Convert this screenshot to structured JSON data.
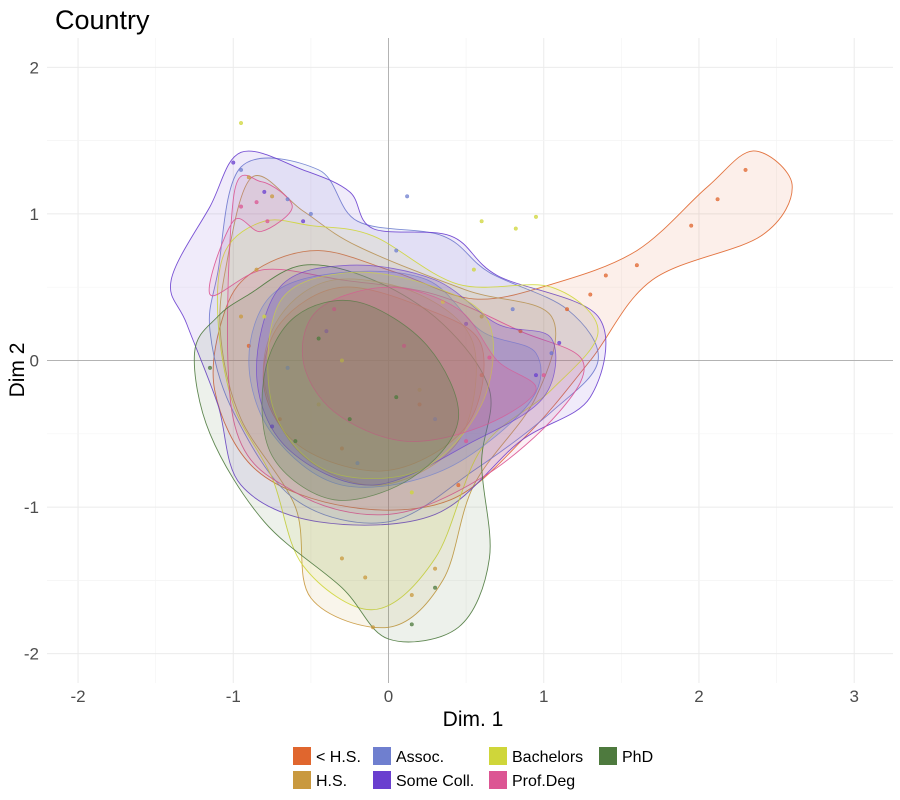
{
  "chart_data": {
    "type": "scatter",
    "title": "Country",
    "xlabel": "Dim. 1",
    "ylabel": "Dim 2",
    "xlim": [
      -2.2,
      3.25
    ],
    "ylim": [
      -2.2,
      2.2
    ],
    "x_ticks": [
      -2,
      -1,
      0,
      1,
      2,
      3
    ],
    "y_ticks": [
      -2,
      -1,
      0,
      1,
      2
    ],
    "grid": true,
    "legend_position": "bottom",
    "overlay": "2D density contours (two levels) per group, with jittered points",
    "series": [
      {
        "name": "< H.S.",
        "color": "#E0662E",
        "points": [
          [
            2.3,
            1.3
          ],
          [
            2.12,
            1.1
          ],
          [
            1.95,
            0.92
          ],
          [
            1.6,
            0.65
          ],
          [
            1.4,
            0.58
          ],
          [
            1.3,
            0.45
          ],
          [
            1.15,
            0.35
          ],
          [
            0.85,
            0.2
          ],
          [
            0.6,
            -0.1
          ],
          [
            0.2,
            -0.3
          ],
          [
            -0.3,
            -0.6
          ],
          [
            -0.9,
            0.1
          ],
          [
            -0.7,
            -0.4
          ],
          [
            0.45,
            -0.85
          ]
        ],
        "outer": [
          [
            -1.05,
            0.35
          ],
          [
            -0.85,
            0.62
          ],
          [
            -0.45,
            0.75
          ],
          [
            0.05,
            0.6
          ],
          [
            0.55,
            0.42
          ],
          [
            1.05,
            0.52
          ],
          [
            1.6,
            0.75
          ],
          [
            2.05,
            1.18
          ],
          [
            2.35,
            1.43
          ],
          [
            2.6,
            1.2
          ],
          [
            2.4,
            0.85
          ],
          [
            1.7,
            0.55
          ],
          [
            1.3,
            0.0
          ],
          [
            0.9,
            -0.5
          ],
          [
            0.4,
            -0.95
          ],
          [
            -0.25,
            -1.0
          ],
          [
            -0.85,
            -0.75
          ],
          [
            -1.12,
            -0.2
          ]
        ],
        "inner": [
          [
            -0.7,
            0.25
          ],
          [
            -0.3,
            0.5
          ],
          [
            0.25,
            0.35
          ],
          [
            0.6,
            0.1
          ],
          [
            0.5,
            -0.45
          ],
          [
            0.0,
            -0.75
          ],
          [
            -0.55,
            -0.6
          ],
          [
            -0.8,
            -0.2
          ]
        ]
      },
      {
        "name": "H.S.",
        "color": "#C9993F",
        "points": [
          [
            -0.9,
            1.25
          ],
          [
            -0.75,
            1.12
          ],
          [
            -0.85,
            0.62
          ],
          [
            -0.95,
            0.3
          ],
          [
            -0.3,
            -1.35
          ],
          [
            -0.15,
            -1.48
          ],
          [
            -0.1,
            -1.82
          ],
          [
            0.15,
            -1.6
          ],
          [
            0.3,
            -1.42
          ],
          [
            0.6,
            0.3
          ],
          [
            0.2,
            -0.2
          ],
          [
            -0.45,
            -0.3
          ]
        ],
        "outer": [
          [
            -1.05,
            0.62
          ],
          [
            -0.88,
            1.25
          ],
          [
            -0.55,
            1.02
          ],
          [
            -0.2,
            0.78
          ],
          [
            0.5,
            0.48
          ],
          [
            1.05,
            0.3
          ],
          [
            0.95,
            -0.25
          ],
          [
            0.55,
            -0.85
          ],
          [
            0.35,
            -1.5
          ],
          [
            0.0,
            -1.82
          ],
          [
            -0.5,
            -1.62
          ],
          [
            -0.6,
            -1.0
          ],
          [
            -0.95,
            -0.4
          ],
          [
            -1.08,
            0.15
          ]
        ],
        "inner": [
          [
            -0.7,
            0.3
          ],
          [
            -0.35,
            0.55
          ],
          [
            0.2,
            0.45
          ],
          [
            0.55,
            0.1
          ],
          [
            0.45,
            -0.55
          ],
          [
            -0.05,
            -0.85
          ],
          [
            -0.55,
            -0.65
          ],
          [
            -0.8,
            -0.15
          ]
        ]
      },
      {
        "name": "Assoc.",
        "color": "#6F7FCF",
        "points": [
          [
            -0.95,
            1.3
          ],
          [
            -0.65,
            1.1
          ],
          [
            -0.5,
            1.0
          ],
          [
            0.12,
            1.12
          ],
          [
            0.05,
            0.75
          ],
          [
            0.8,
            0.35
          ],
          [
            1.05,
            0.05
          ],
          [
            -0.65,
            -0.05
          ],
          [
            0.3,
            -0.4
          ],
          [
            -0.2,
            -0.7
          ]
        ],
        "outer": [
          [
            -1.1,
            0.6
          ],
          [
            -0.95,
            1.32
          ],
          [
            -0.45,
            1.3
          ],
          [
            -0.2,
            0.95
          ],
          [
            0.35,
            0.85
          ],
          [
            0.65,
            0.6
          ],
          [
            1.15,
            0.35
          ],
          [
            1.35,
            0.0
          ],
          [
            1.05,
            -0.35
          ],
          [
            0.55,
            -0.75
          ],
          [
            0.0,
            -1.1
          ],
          [
            -0.6,
            -0.95
          ],
          [
            -1.0,
            -0.35
          ],
          [
            -1.15,
            0.2
          ]
        ],
        "inner": [
          [
            -0.75,
            0.45
          ],
          [
            -0.3,
            0.6
          ],
          [
            0.25,
            0.55
          ],
          [
            0.6,
            0.2
          ],
          [
            0.95,
            0.05
          ],
          [
            0.9,
            -0.3
          ],
          [
            0.35,
            -0.75
          ],
          [
            -0.3,
            -0.85
          ],
          [
            -0.75,
            -0.5
          ],
          [
            -0.9,
            0.0
          ]
        ]
      },
      {
        "name": "Some Coll.",
        "color": "#6A3FCF",
        "points": [
          [
            -1.0,
            1.35
          ],
          [
            -0.8,
            1.15
          ],
          [
            -0.55,
            0.95
          ],
          [
            0.95,
            -0.1
          ],
          [
            1.1,
            0.12
          ],
          [
            0.5,
            0.25
          ],
          [
            -0.75,
            -0.45
          ],
          [
            -0.4,
            0.2
          ]
        ],
        "outer": [
          [
            -1.4,
            0.55
          ],
          [
            -1.15,
            1.05
          ],
          [
            -0.95,
            1.42
          ],
          [
            -0.55,
            1.3
          ],
          [
            -0.25,
            1.15
          ],
          [
            -0.1,
            0.9
          ],
          [
            0.4,
            0.85
          ],
          [
            0.7,
            0.58
          ],
          [
            1.35,
            0.3
          ],
          [
            1.3,
            -0.25
          ],
          [
            0.85,
            -0.55
          ],
          [
            0.3,
            -1.05
          ],
          [
            -0.45,
            -1.1
          ],
          [
            -0.95,
            -0.85
          ],
          [
            -1.1,
            -0.3
          ],
          [
            -1.3,
            0.25
          ]
        ],
        "inner": [
          [
            -0.7,
            0.5
          ],
          [
            -0.25,
            0.65
          ],
          [
            0.3,
            0.55
          ],
          [
            0.7,
            0.25
          ],
          [
            1.05,
            0.15
          ],
          [
            1.0,
            -0.25
          ],
          [
            0.55,
            -0.55
          ],
          [
            -0.1,
            -0.85
          ],
          [
            -0.65,
            -0.6
          ],
          [
            -0.85,
            -0.1
          ]
        ]
      },
      {
        "name": "Bachelors",
        "color": "#CFD63A",
        "points": [
          [
            -0.95,
            1.62
          ],
          [
            0.82,
            0.9
          ],
          [
            0.95,
            0.98
          ],
          [
            0.55,
            0.62
          ],
          [
            0.6,
            0.95
          ],
          [
            0.35,
            0.4
          ],
          [
            -0.8,
            0.3
          ],
          [
            -0.3,
            0.0
          ],
          [
            0.15,
            -0.9
          ]
        ],
        "outer": [
          [
            -1.05,
            0.75
          ],
          [
            -0.8,
            0.95
          ],
          [
            -0.5,
            0.92
          ],
          [
            -0.1,
            0.85
          ],
          [
            0.45,
            0.52
          ],
          [
            1.05,
            0.5
          ],
          [
            1.35,
            0.2
          ],
          [
            1.05,
            -0.2
          ],
          [
            0.6,
            -0.6
          ],
          [
            0.3,
            -1.35
          ],
          [
            -0.1,
            -1.7
          ],
          [
            -0.55,
            -1.4
          ],
          [
            -0.75,
            -0.8
          ],
          [
            -1.0,
            -0.3
          ],
          [
            -1.1,
            0.3
          ]
        ],
        "inner": [
          [
            -0.7,
            0.4
          ],
          [
            -0.25,
            0.6
          ],
          [
            0.3,
            0.5
          ],
          [
            0.65,
            0.25
          ],
          [
            0.6,
            -0.3
          ],
          [
            0.2,
            -0.75
          ],
          [
            -0.4,
            -0.75
          ],
          [
            -0.75,
            -0.3
          ]
        ]
      },
      {
        "name": "Prof.Deg",
        "color": "#DC5593",
        "points": [
          [
            -0.95,
            1.05
          ],
          [
            -0.85,
            1.08
          ],
          [
            -0.78,
            0.95
          ],
          [
            0.65,
            0.02
          ],
          [
            1.0,
            -0.1
          ],
          [
            0.5,
            -0.55
          ],
          [
            -0.35,
            0.35
          ],
          [
            0.1,
            0.1
          ]
        ],
        "outer": [
          [
            -1.0,
            1.1
          ],
          [
            -0.82,
            1.22
          ],
          [
            -0.62,
            1.05
          ],
          [
            -0.82,
            0.88
          ],
          [
            -1.0,
            0.95
          ],
          [
            -1.15,
            0.45
          ],
          [
            -0.8,
            0.62
          ],
          [
            -0.3,
            0.55
          ],
          [
            0.3,
            0.45
          ],
          [
            0.85,
            0.2
          ],
          [
            1.25,
            0.0
          ],
          [
            1.1,
            -0.35
          ],
          [
            0.6,
            -0.8
          ],
          [
            0.0,
            -1.05
          ],
          [
            -0.6,
            -0.9
          ],
          [
            -1.0,
            -0.4
          ]
        ],
        "inner": [
          [
            -0.45,
            0.35
          ],
          [
            0.0,
            0.5
          ],
          [
            0.45,
            0.35
          ],
          [
            0.7,
            0.0
          ],
          [
            0.95,
            -0.2
          ],
          [
            0.6,
            -0.45
          ],
          [
            0.1,
            -0.55
          ],
          [
            -0.35,
            -0.35
          ],
          [
            -0.55,
            0.0
          ]
        ]
      },
      {
        "name": "PhD",
        "color": "#4E7A3E",
        "points": [
          [
            -1.15,
            -0.05
          ],
          [
            0.15,
            -1.8
          ],
          [
            0.3,
            -1.55
          ],
          [
            -0.45,
            0.15
          ],
          [
            -0.25,
            -0.4
          ],
          [
            0.05,
            -0.25
          ],
          [
            -0.6,
            -0.55
          ]
        ],
        "outer": [
          [
            -0.9,
            0.45
          ],
          [
            -0.55,
            0.65
          ],
          [
            -0.1,
            0.55
          ],
          [
            0.35,
            0.25
          ],
          [
            0.65,
            -0.2
          ],
          [
            0.6,
            -0.7
          ],
          [
            0.65,
            -1.35
          ],
          [
            0.45,
            -1.82
          ],
          [
            0.0,
            -1.9
          ],
          [
            -0.3,
            -1.55
          ],
          [
            -0.8,
            -1.1
          ],
          [
            -1.15,
            -0.5
          ],
          [
            -1.25,
            0.05
          ],
          [
            -1.1,
            0.3
          ]
        ],
        "inner": [
          [
            -0.6,
            0.3
          ],
          [
            -0.2,
            0.4
          ],
          [
            0.25,
            0.1
          ],
          [
            0.45,
            -0.4
          ],
          [
            0.15,
            -0.8
          ],
          [
            -0.35,
            -0.95
          ],
          [
            -0.75,
            -0.65
          ],
          [
            -0.8,
            -0.1
          ]
        ]
      }
    ]
  }
}
